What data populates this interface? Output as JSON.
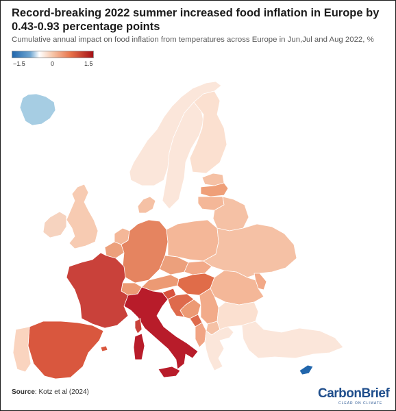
{
  "title": "Record-breaking 2022 summer increased food inflation in Europe by 0.43-0.93 percentage points",
  "subtitle": "Cumulative annual impact on food inflation from temperatures across Europe in Jun,Jul and Aug 2022, %",
  "legend": {
    "min_label": "−1.5",
    "mid_label": "0",
    "max_label": "1.5",
    "colors": [
      "#2166ac",
      "#ffffff",
      "#a50f15"
    ]
  },
  "source": {
    "label": "Source",
    "text": ": Kotz et al (2024)"
  },
  "logo": {
    "text": "CarbonBrief",
    "tagline": "CLEAR ON CLIMATE"
  },
  "regions": [
    {
      "name": "Iceland",
      "color": "#a6cde3"
    },
    {
      "name": "Norway",
      "color": "#fbe6da"
    },
    {
      "name": "Sweden",
      "color": "#fbe6da"
    },
    {
      "name": "Finland",
      "color": "#fbe0d0"
    },
    {
      "name": "Estonia",
      "color": "#f5c1a5"
    },
    {
      "name": "Latvia",
      "color": "#ef9f78"
    },
    {
      "name": "Lithuania",
      "color": "#f4b798"
    },
    {
      "name": "Belarus",
      "color": "#f5c1a5"
    },
    {
      "name": "United Kingdom",
      "color": "#f7cbb2"
    },
    {
      "name": "Ireland",
      "color": "#f6d3bf"
    },
    {
      "name": "Denmark",
      "color": "#f5c1a5"
    },
    {
      "name": "Netherlands",
      "color": "#f4b798"
    },
    {
      "name": "Belgium",
      "color": "#eca07c"
    },
    {
      "name": "Germany",
      "color": "#e58460"
    },
    {
      "name": "Poland",
      "color": "#f4b798"
    },
    {
      "name": "Czechia",
      "color": "#eca07c"
    },
    {
      "name": "Slovakia",
      "color": "#f2a988"
    },
    {
      "name": "Ukraine",
      "color": "#f5c1a5"
    },
    {
      "name": "Moldova",
      "color": "#f2a988"
    },
    {
      "name": "Austria",
      "color": "#ec9a74"
    },
    {
      "name": "Switzerland",
      "color": "#ec9a74"
    },
    {
      "name": "Hungary",
      "color": "#e06c49"
    },
    {
      "name": "Romania",
      "color": "#f4b798"
    },
    {
      "name": "Bulgaria",
      "color": "#fbe0d0"
    },
    {
      "name": "France",
      "color": "#c9413a"
    },
    {
      "name": "Spain",
      "color": "#d9573e"
    },
    {
      "name": "Portugal",
      "color": "#fad4bf"
    },
    {
      "name": "Italy",
      "color": "#b81c2a"
    },
    {
      "name": "Slovenia",
      "color": "#d8533e"
    },
    {
      "name": "Croatia",
      "color": "#de6a4c"
    },
    {
      "name": "Bosnia and Herzegovina",
      "color": "#ec9a74"
    },
    {
      "name": "Serbia",
      "color": "#f2ab8a"
    },
    {
      "name": "Montenegro",
      "color": "#de6a4c"
    },
    {
      "name": "Albania",
      "color": "#f1a484"
    },
    {
      "name": "North Macedonia",
      "color": "#f5c1a5"
    },
    {
      "name": "Greece",
      "color": "#fbe6da"
    },
    {
      "name": "Turkey",
      "color": "#fbe6da"
    },
    {
      "name": "Cyprus",
      "color": "#2166ac"
    }
  ]
}
